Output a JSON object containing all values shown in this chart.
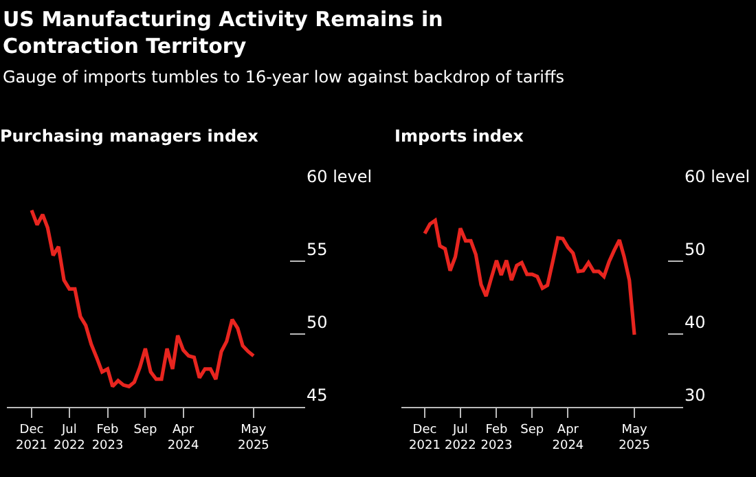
{
  "chart_data": [
    {
      "type": "line",
      "title": "US Manufacturing Activity Remains in\nContraction Territory",
      "subtitle": "Gauge of imports tumbles to 16-year low against backdrop of tariffs",
      "ylabel": "Purchasing managers index",
      "x": [
        "2021-12",
        "2022-01",
        "2022-02",
        "2022-03",
        "2022-04",
        "2022-05",
        "2022-06",
        "2022-07",
        "2022-08",
        "2022-09",
        "2022-10",
        "2022-11",
        "2022-12",
        "2023-01",
        "2023-02",
        "2023-03",
        "2023-04",
        "2023-05",
        "2023-06",
        "2023-07",
        "2023-08",
        "2023-09",
        "2023-10",
        "2023-11",
        "2023-12",
        "2024-01",
        "2024-02",
        "2024-03",
        "2024-04",
        "2024-05",
        "2024-06",
        "2024-07",
        "2024-08",
        "2024-09",
        "2024-10",
        "2024-11",
        "2024-12",
        "2025-01",
        "2025-02",
        "2025-03",
        "2025-04",
        "2025-05"
      ],
      "series": [
        {
          "color": "#e8251f",
          "values": [
            58.5,
            57.5,
            58.2,
            57.3,
            55.4,
            56.0,
            53.7,
            53.1,
            53.1,
            51.2,
            50.6,
            49.3,
            48.4,
            47.4,
            47.6,
            46.4,
            46.8,
            46.5,
            46.4,
            46.7,
            47.7,
            49.0,
            47.4,
            46.9,
            46.9,
            49.0,
            47.6,
            49.9,
            48.9,
            48.5,
            48.4,
            47.0,
            47.6,
            47.6,
            46.9,
            48.8,
            49.5,
            51.0,
            50.4,
            49.2,
            48.8,
            48.5
          ]
        }
      ],
      "xlim": [
        "2021-07-15",
        "2026-02-15"
      ],
      "xticks": [
        {
          "value": "2021-12",
          "label": "Dec\n2021"
        },
        {
          "value": "2022-07",
          "label": "Jul\n2022"
        },
        {
          "value": "2023-02",
          "label": "Feb\n2023"
        },
        {
          "value": "2023-09",
          "label": "Sep"
        },
        {
          "value": "2024-04",
          "label": "Apr\n2024"
        },
        {
          "value": "2025-05",
          "label": "May\n2025"
        }
      ],
      "ylim": [
        45,
        60
      ],
      "yticks": [
        45,
        50,
        55,
        {
          "value": 60,
          "label": "60 level"
        }
      ],
      "grid": false,
      "marker": "none",
      "line_style": "solid"
    },
    {
      "type": "line",
      "ylabel": "Imports index",
      "x": [
        "2021-12",
        "2022-01",
        "2022-02",
        "2022-03",
        "2022-04",
        "2022-05",
        "2022-06",
        "2022-07",
        "2022-08",
        "2022-09",
        "2022-10",
        "2022-11",
        "2022-12",
        "2023-01",
        "2023-02",
        "2023-03",
        "2023-04",
        "2023-05",
        "2023-06",
        "2023-07",
        "2023-08",
        "2023-09",
        "2023-10",
        "2023-11",
        "2023-12",
        "2024-01",
        "2024-02",
        "2024-03",
        "2024-04",
        "2024-05",
        "2024-06",
        "2024-07",
        "2024-08",
        "2024-09",
        "2024-10",
        "2024-11",
        "2024-12",
        "2025-01",
        "2025-02",
        "2025-03",
        "2025-04",
        "2025-05"
      ],
      "series": [
        {
          "color": "#e8251f",
          "values": [
            53.8,
            55.1,
            55.6,
            52.1,
            51.7,
            48.7,
            50.6,
            54.5,
            52.8,
            52.8,
            50.9,
            46.8,
            45.2,
            47.7,
            50.1,
            48.1,
            50.1,
            47.4,
            49.4,
            49.8,
            48.2,
            48.2,
            47.9,
            46.3,
            46.7,
            49.9,
            53.2,
            53.1,
            51.9,
            51.1,
            48.6,
            48.7,
            49.8,
            48.6,
            48.6,
            47.9,
            49.9,
            51.5,
            52.9,
            50.6,
            47.4,
            39.9
          ]
        }
      ],
      "xlim": [
        "2021-07-15",
        "2026-02-15"
      ],
      "xticks": [
        {
          "value": "2021-12",
          "label": "Dec\n2021"
        },
        {
          "value": "2022-07",
          "label": "Jul\n2022"
        },
        {
          "value": "2023-02",
          "label": "Feb\n2023"
        },
        {
          "value": "2023-09",
          "label": "Sep"
        },
        {
          "value": "2024-04",
          "label": "Apr\n2024"
        },
        {
          "value": "2025-05",
          "label": "May\n2025"
        }
      ],
      "ylim": [
        30,
        60
      ],
      "yticks": [
        30,
        40,
        50,
        {
          "value": 60,
          "label": "60 level"
        }
      ],
      "grid": false,
      "marker": "none",
      "line_style": "solid"
    }
  ]
}
